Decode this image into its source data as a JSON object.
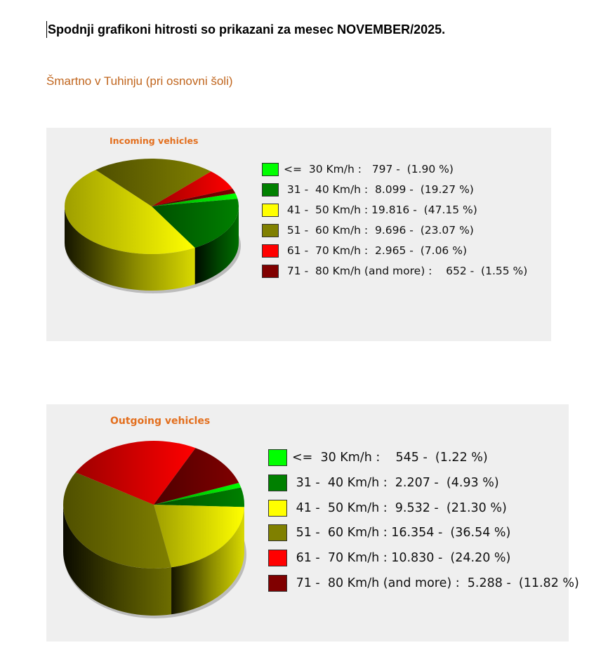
{
  "heading": "Spodnji grafikoni hitrosti so prikazani za mesec NOVEMBER/2025.",
  "location": "Šmartno v Tuhinju (pri osnovni šoli)",
  "chart_data": [
    {
      "type": "pie",
      "title": "Incoming vehicles",
      "categories": [
        "<=  30 Km/h",
        "31 -  40 Km/h",
        "41 -  50 Km/h",
        "51 -  60 Km/h",
        "61 -  70 Km/h",
        "71 -  80 Km/h (and more)"
      ],
      "values": [
        797,
        8099,
        19816,
        9696,
        2965,
        652
      ],
      "percents": [
        1.9,
        19.27,
        47.15,
        23.07,
        7.06,
        1.55
      ],
      "colors": [
        "#00ff00",
        "#008000",
        "#ffff00",
        "#808000",
        "#ff0000",
        "#800000"
      ],
      "legend_lines": [
        "<=  30 Km/h :   797 -  (1.90 %)",
        " 31 -  40 Km/h :  8.099 -  (19.27 %)",
        " 41 -  50 Km/h : 19.816 -  (47.15 %)",
        " 51 -  60 Km/h :  9.696 -  (23.07 %)",
        " 61 -  70 Km/h :  2.965 -  (7.06 %)",
        " 71 -  80 Km/h (and more) :    652 -  (1.55 %)"
      ],
      "legend": "right"
    },
    {
      "type": "pie",
      "title": "Outgoing vehicles",
      "categories": [
        "<=  30 Km/h",
        "31 -  40 Km/h",
        "41 -  50 Km/h",
        "51 -  60 Km/h",
        "61 -  70 Km/h",
        "71 -  80 Km/h (and more)"
      ],
      "values": [
        545,
        2207,
        9532,
        16354,
        10830,
        5288
      ],
      "percents": [
        1.22,
        4.93,
        21.3,
        36.54,
        24.2,
        11.82
      ],
      "colors": [
        "#00ff00",
        "#008000",
        "#ffff00",
        "#808000",
        "#ff0000",
        "#800000"
      ],
      "legend_lines": [
        "<=  30 Km/h :    545 -  (1.22 %)",
        " 31 -  40 Km/h :  2.207 -  (4.93 %)",
        " 41 -  50 Km/h :  9.532 -  (21.30 %)",
        " 51 -  60 Km/h : 16.354 -  (36.54 %)",
        " 61 -  70 Km/h : 10.830 -  (24.20 %)",
        " 71 -  80 Km/h (and more) :  5.288 -  (11.82 %)"
      ],
      "legend": "right"
    }
  ]
}
